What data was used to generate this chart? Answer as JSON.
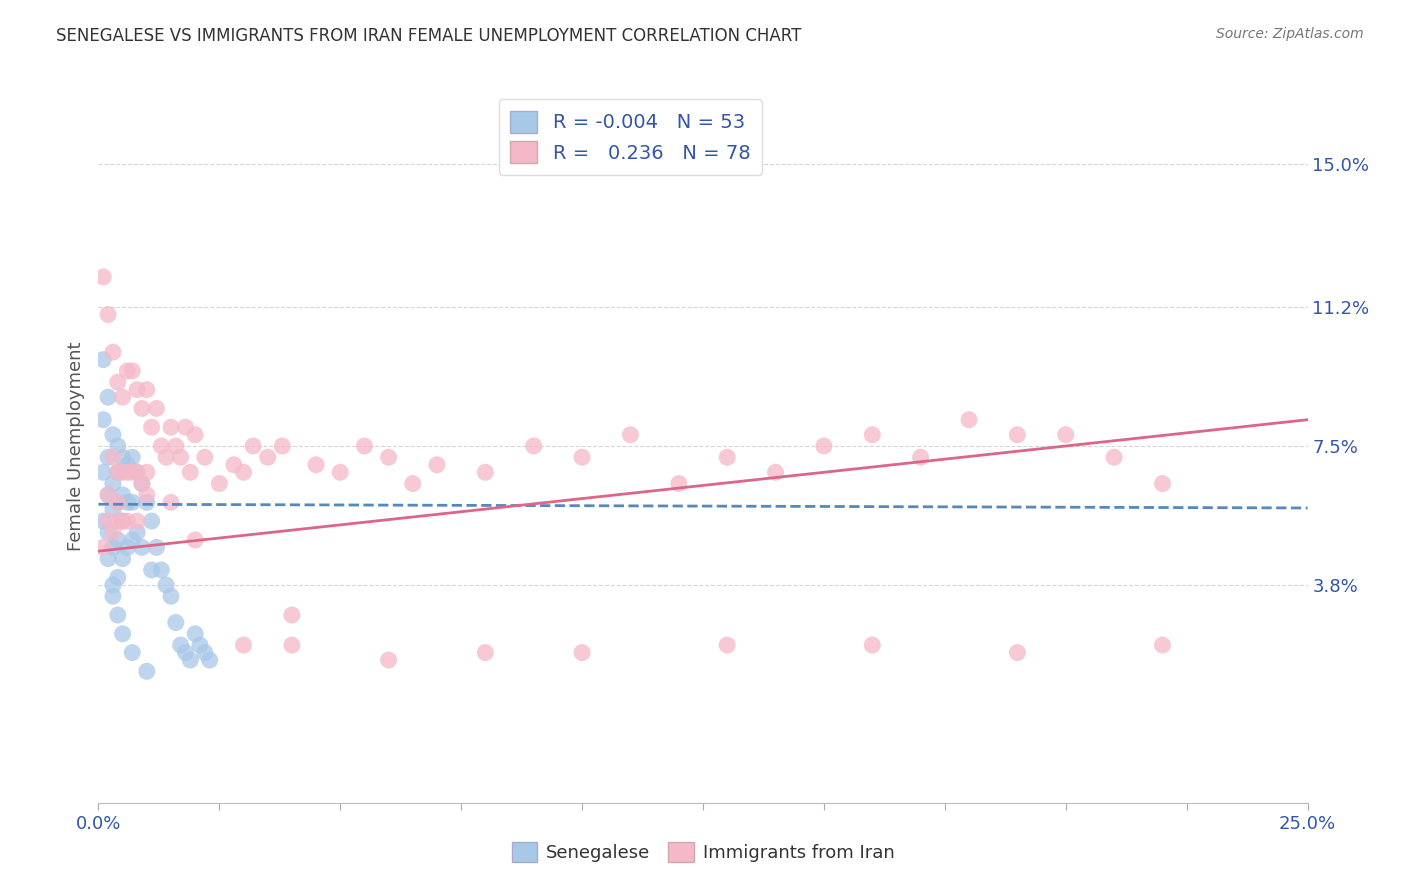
{
  "title": "SENEGALESE VS IMMIGRANTS FROM IRAN FEMALE UNEMPLOYMENT CORRELATION CHART",
  "source": "Source: ZipAtlas.com",
  "ylabel": "Female Unemployment",
  "xlim": [
    0.0,
    0.25
  ],
  "ylim": [
    -0.02,
    0.17
  ],
  "yticks": [
    0.038,
    0.075,
    0.112,
    0.15
  ],
  "ytick_labels": [
    "3.8%",
    "7.5%",
    "11.2%",
    "15.0%"
  ],
  "blue_color": "#a8c8e8",
  "pink_color": "#f5b8c8",
  "blue_line_color": "#5588bb",
  "pink_line_color": "#dd6688",
  "background_color": "#ffffff",
  "grid_color": "#cccccc",
  "title_color": "#333333",
  "r1": "-0.004",
  "n1": "53",
  "r2": "0.236",
  "n2": "78",
  "blue_trend_start_y": 0.0595,
  "blue_trend_end_y": 0.0585,
  "pink_trend_start_y": 0.047,
  "pink_trend_end_y": 0.082,
  "senegalese_x": [
    0.001,
    0.001,
    0.001,
    0.002,
    0.002,
    0.002,
    0.002,
    0.003,
    0.003,
    0.003,
    0.003,
    0.003,
    0.004,
    0.004,
    0.004,
    0.004,
    0.004,
    0.005,
    0.005,
    0.005,
    0.005,
    0.006,
    0.006,
    0.006,
    0.007,
    0.007,
    0.007,
    0.008,
    0.008,
    0.009,
    0.009,
    0.01,
    0.011,
    0.011,
    0.012,
    0.013,
    0.014,
    0.015,
    0.016,
    0.017,
    0.018,
    0.019,
    0.02,
    0.021,
    0.022,
    0.023,
    0.001,
    0.002,
    0.003,
    0.004,
    0.005,
    0.007,
    0.01
  ],
  "senegalese_y": [
    0.098,
    0.082,
    0.068,
    0.088,
    0.072,
    0.062,
    0.052,
    0.078,
    0.065,
    0.058,
    0.048,
    0.038,
    0.075,
    0.068,
    0.06,
    0.05,
    0.04,
    0.072,
    0.062,
    0.055,
    0.045,
    0.07,
    0.06,
    0.048,
    0.072,
    0.06,
    0.05,
    0.068,
    0.052,
    0.065,
    0.048,
    0.06,
    0.055,
    0.042,
    0.048,
    0.042,
    0.038,
    0.035,
    0.028,
    0.022,
    0.02,
    0.018,
    0.025,
    0.022,
    0.02,
    0.018,
    0.055,
    0.045,
    0.035,
    0.03,
    0.025,
    0.02,
    0.015
  ],
  "iran_x": [
    0.001,
    0.001,
    0.002,
    0.002,
    0.003,
    0.003,
    0.003,
    0.004,
    0.004,
    0.004,
    0.005,
    0.005,
    0.005,
    0.006,
    0.006,
    0.007,
    0.007,
    0.008,
    0.008,
    0.009,
    0.009,
    0.01,
    0.01,
    0.011,
    0.012,
    0.013,
    0.014,
    0.015,
    0.016,
    0.017,
    0.018,
    0.019,
    0.02,
    0.022,
    0.025,
    0.028,
    0.03,
    0.032,
    0.035,
    0.038,
    0.04,
    0.045,
    0.05,
    0.055,
    0.06,
    0.065,
    0.07,
    0.08,
    0.09,
    0.1,
    0.11,
    0.12,
    0.13,
    0.14,
    0.15,
    0.16,
    0.17,
    0.18,
    0.19,
    0.2,
    0.21,
    0.22,
    0.002,
    0.004,
    0.006,
    0.008,
    0.01,
    0.015,
    0.02,
    0.03,
    0.04,
    0.06,
    0.08,
    0.1,
    0.13,
    0.16,
    0.19,
    0.22
  ],
  "iran_y": [
    0.12,
    0.048,
    0.11,
    0.062,
    0.1,
    0.072,
    0.052,
    0.092,
    0.068,
    0.055,
    0.088,
    0.068,
    0.055,
    0.095,
    0.068,
    0.095,
    0.068,
    0.09,
    0.068,
    0.085,
    0.065,
    0.09,
    0.068,
    0.08,
    0.085,
    0.075,
    0.072,
    0.08,
    0.075,
    0.072,
    0.08,
    0.068,
    0.078,
    0.072,
    0.065,
    0.07,
    0.068,
    0.075,
    0.072,
    0.075,
    0.03,
    0.07,
    0.068,
    0.075,
    0.072,
    0.065,
    0.07,
    0.068,
    0.075,
    0.072,
    0.078,
    0.065,
    0.072,
    0.068,
    0.075,
    0.078,
    0.072,
    0.082,
    0.078,
    0.078,
    0.072,
    0.065,
    0.055,
    0.06,
    0.055,
    0.055,
    0.062,
    0.06,
    0.05,
    0.022,
    0.022,
    0.018,
    0.02,
    0.02,
    0.022,
    0.022,
    0.02,
    0.022
  ]
}
